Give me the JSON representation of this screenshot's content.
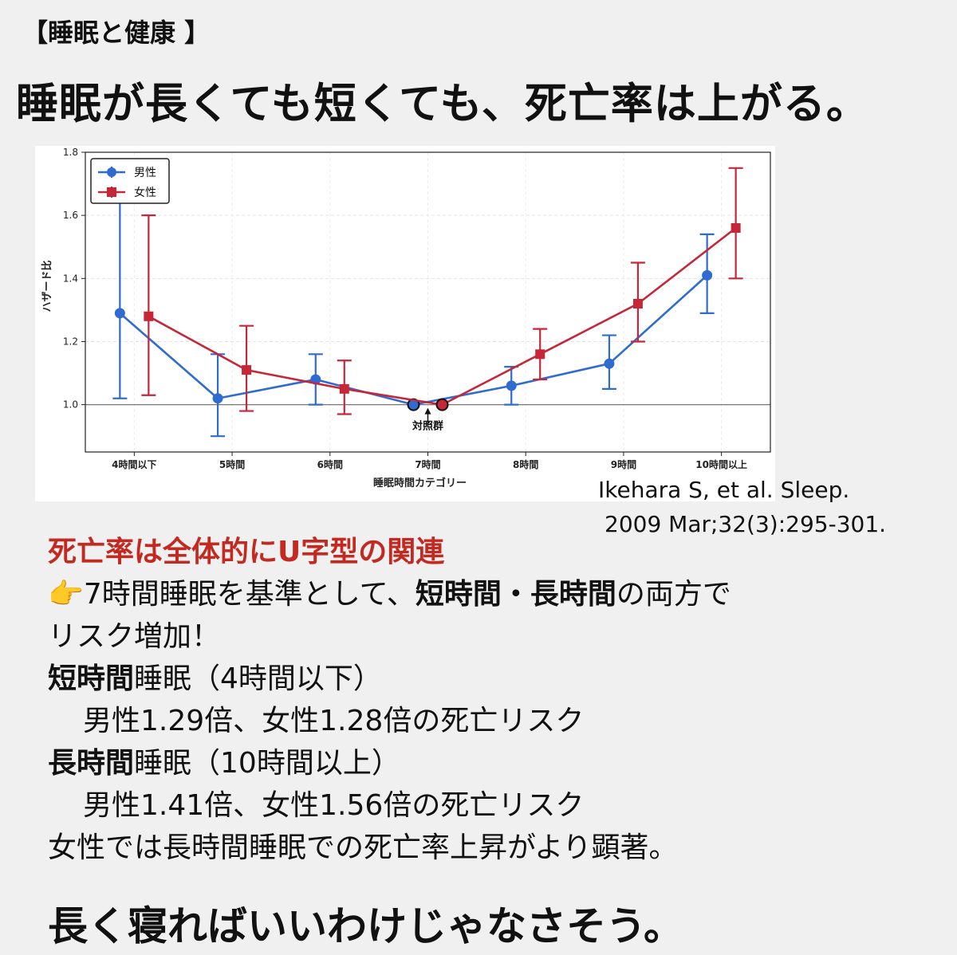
{
  "header": {
    "tag": "【睡眠と健康 】",
    "headline": "睡眠が長くても短くても、死亡率は上がる。"
  },
  "chart_data": {
    "type": "line",
    "categories": [
      "4時間以下",
      "5時間",
      "6時間",
      "7時間",
      "8時間",
      "9時間",
      "10時間以上"
    ],
    "xlabel": "睡眠時間カテゴリー",
    "ylabel": "ハザード比",
    "ylim": [
      0.85,
      1.8
    ],
    "yticks": [
      1.0,
      1.2,
      1.4,
      1.6,
      1.8
    ],
    "reference_line": 1.0,
    "reference_label": "対照群",
    "grid": true,
    "legend": "top-left",
    "series": [
      {
        "name": "男性",
        "color": "#2f6bd0",
        "marker": "circle",
        "values": [
          1.29,
          1.02,
          1.08,
          1.0,
          1.06,
          1.13,
          1.41
        ],
        "ci_low": [
          1.02,
          0.9,
          1.0,
          1.0,
          1.0,
          1.05,
          1.29
        ],
        "ci_high": [
          1.68,
          1.16,
          1.16,
          1.0,
          1.12,
          1.22,
          1.54
        ]
      },
      {
        "name": "女性",
        "color": "#c52638",
        "marker": "square",
        "values": [
          1.28,
          1.11,
          1.05,
          1.0,
          1.16,
          1.32,
          1.56
        ],
        "ci_low": [
          1.03,
          0.98,
          0.97,
          1.0,
          1.08,
          1.2,
          1.4
        ],
        "ci_high": [
          1.6,
          1.25,
          1.14,
          1.0,
          1.24,
          1.45,
          1.75
        ]
      }
    ]
  },
  "citation": {
    "line1": "Ikehara S, et al. Sleep.",
    "line2": "2009 Mar;32(3):295-301."
  },
  "body": {
    "point_heading": "死亡率は全体的にU字型の関連",
    "finger_icon": "👉",
    "line1_a": "7時間睡眠を基準として、",
    "line1_b": "短時間・長時間",
    "line1_c": "の両方で",
    "line2": "リスク増加！",
    "short_label_b": "短時間",
    "short_label_r": "睡眠（4時間以下）",
    "short_detail": "男性1.29倍、女性1.28倍の死亡リスク",
    "long_label_b": "長時間",
    "long_label_r": "睡眠（10時間以上）",
    "long_detail": "男性1.41倍、女性1.56倍の死亡リスク",
    "female_note": "女性では長時間睡眠での死亡率上昇がより顕著。"
  },
  "closing": "長く寝ればいいわけじゃなさそう。"
}
